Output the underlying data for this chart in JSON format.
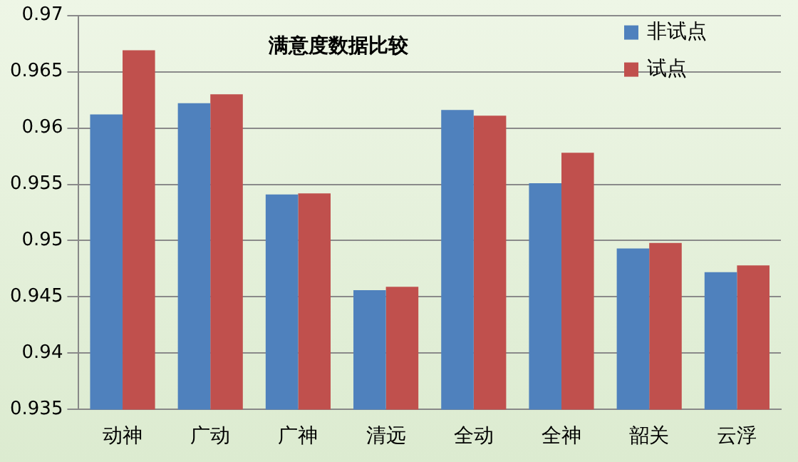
{
  "chart_data": {
    "type": "bar",
    "title": "满意度数据比较",
    "categories": [
      "动神",
      "广动",
      "广神",
      "清远",
      "全动",
      "全神",
      "韶关",
      "云浮"
    ],
    "series": [
      {
        "name": "非试点",
        "color": "#4f81bd",
        "values": [
          0.9612,
          0.9622,
          0.9541,
          0.9456,
          0.9616,
          0.9551,
          0.9493,
          0.9472
        ]
      },
      {
        "name": "试点",
        "color": "#c0504d",
        "values": [
          0.9669,
          0.963,
          0.9542,
          0.9459,
          0.9611,
          0.9578,
          0.9498,
          0.9478
        ]
      }
    ],
    "ylim": [
      0.935,
      0.97
    ],
    "yticks": [
      0.935,
      0.94,
      0.945,
      0.95,
      0.955,
      0.96,
      0.965,
      0.97
    ],
    "grid": "y",
    "legend": "top right"
  }
}
